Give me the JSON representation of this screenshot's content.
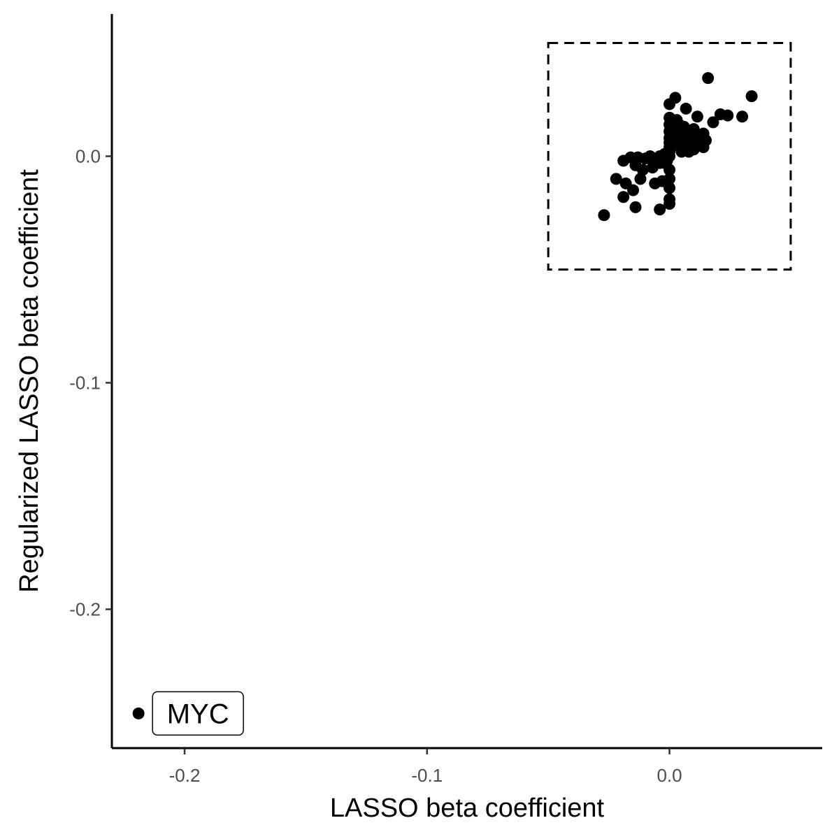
{
  "chart_data": {
    "type": "scatter",
    "title": "",
    "xlabel": "LASSO beta coefficient",
    "ylabel": "Regularized LASSO beta coefficient",
    "xlim": [
      -0.23,
      0.063
    ],
    "ylim": [
      -0.2613,
      0.0628
    ],
    "x_ticks": [
      -0.2,
      -0.1,
      0.0
    ],
    "x_tick_labels": [
      "-0.2",
      "-0.1",
      "0.0"
    ],
    "y_ticks": [
      0.0,
      -0.1,
      -0.2
    ],
    "y_tick_labels": [
      "0.0",
      "-0.1",
      "-0.2"
    ],
    "grid": false,
    "legend": "none",
    "point_color": "#000000",
    "highlight_box": {
      "x": [
        -0.05,
        0.05
      ],
      "y": [
        -0.05,
        0.05
      ],
      "style": "dashed"
    },
    "annotations": [
      {
        "label": "MYC",
        "x": -0.219,
        "y": -0.246
      }
    ],
    "points": [
      [
        -0.219,
        -0.246
      ],
      [
        0.0159,
        0.0345
      ],
      [
        0.0339,
        0.0265
      ],
      [
        0.0024,
        0.0258
      ],
      [
        0.0,
        0.023
      ],
      [
        0.0068,
        0.021
      ],
      [
        0.0115,
        0.0175
      ],
      [
        0.021,
        0.0185
      ],
      [
        0.024,
        0.018
      ],
      [
        0.03,
        0.0175
      ],
      [
        0.018,
        0.015
      ],
      [
        0.0,
        0.017
      ],
      [
        0.0,
        0.014
      ],
      [
        0.003,
        0.016
      ],
      [
        0.006,
        0.013
      ],
      [
        0.01,
        0.012
      ],
      [
        0.014,
        0.01
      ],
      [
        0.005,
        0.01
      ],
      [
        0.009,
        0.008
      ],
      [
        0.0,
        0.011
      ],
      [
        0.0,
        0.008
      ],
      [
        0.0,
        0.006
      ],
      [
        0.003,
        0.005
      ],
      [
        0.006,
        0.004
      ],
      [
        0.01,
        0.003
      ],
      [
        0.014,
        0.004
      ],
      [
        0.012,
        0.006
      ],
      [
        0.008,
        0.002
      ],
      [
        0.005,
        0.002
      ],
      [
        0.0,
        0.004
      ],
      [
        0.0,
        0.002
      ],
      [
        0.0,
        0.0
      ],
      [
        -0.002,
        0.001
      ],
      [
        -0.004,
        0.0
      ],
      [
        -0.006,
        -0.001
      ],
      [
        -0.008,
        0.0
      ],
      [
        -0.01,
        -0.001
      ],
      [
        -0.013,
        -0.0005
      ],
      [
        -0.016,
        -0.0005
      ],
      [
        -0.019,
        -0.002
      ],
      [
        -0.014,
        -0.004
      ],
      [
        -0.011,
        -0.006
      ],
      [
        -0.007,
        -0.005
      ],
      [
        -0.004,
        -0.003
      ],
      [
        -0.002,
        -0.003
      ],
      [
        -0.022,
        -0.01
      ],
      [
        -0.018,
        -0.012
      ],
      [
        -0.015,
        -0.015
      ],
      [
        -0.012,
        -0.01
      ],
      [
        -0.019,
        -0.018
      ],
      [
        -0.014,
        -0.0225
      ],
      [
        -0.027,
        -0.026
      ],
      [
        -0.004,
        -0.0235
      ],
      [
        0.0,
        -0.019
      ],
      [
        0.0,
        -0.021
      ],
      [
        -0.006,
        -0.012
      ],
      [
        -0.003,
        -0.011
      ],
      [
        0.0,
        -0.006
      ],
      [
        0.0,
        -0.01
      ],
      [
        0.0,
        -0.014
      ],
      [
        0.004,
        0.008
      ],
      [
        0.008,
        0.01
      ],
      [
        0.011,
        0.009
      ],
      [
        0.007,
        0.006
      ],
      [
        0.015,
        0.007
      ],
      [
        0.002,
        0.012
      ],
      [
        0.004,
        0.014
      ],
      [
        0.001,
        0.006
      ],
      [
        -0.001,
        -0.002
      ]
    ]
  }
}
